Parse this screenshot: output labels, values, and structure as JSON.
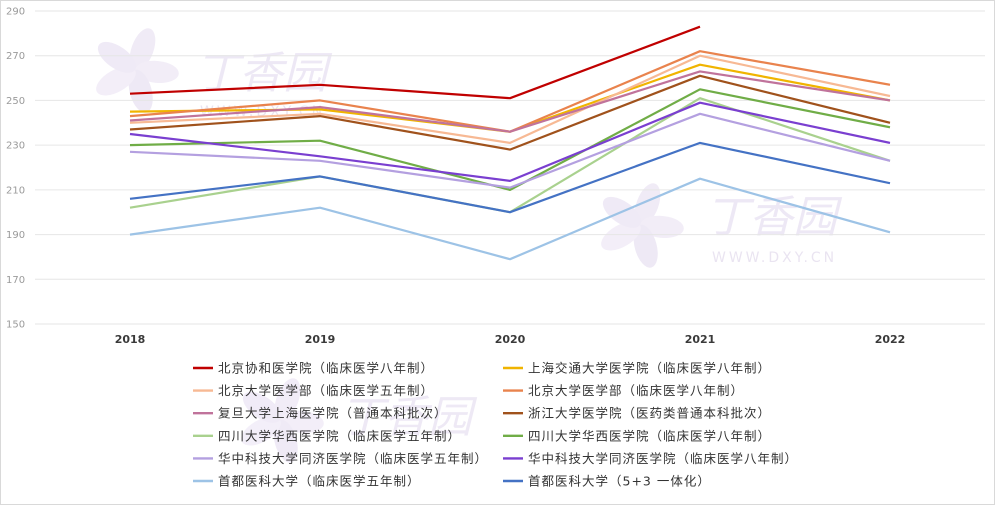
{
  "watermark": {
    "brand": "丁香园",
    "site": "WWW.DXY.CN"
  },
  "chart_data": {
    "type": "line",
    "title": "",
    "xlabel": "",
    "ylabel": "",
    "categories": [
      "2018",
      "2019",
      "2020",
      "2021",
      "2022"
    ],
    "ylim": [
      150,
      290
    ],
    "yticks": [
      150,
      170,
      190,
      210,
      230,
      250,
      270,
      290
    ],
    "grid": "horizontal",
    "legend_position": "bottom",
    "series": [
      {
        "name": "北京协和医学院（临床医学八年制）",
        "color": "#c00000",
        "values": [
          253,
          257,
          251,
          283,
          null
        ]
      },
      {
        "name": "上海交通大学医学院（临床医学八年制）",
        "color": "#f0b400",
        "values": [
          245,
          246,
          236,
          266,
          250
        ]
      },
      {
        "name": "北京大学医学部（临床医学五年制）",
        "color": "#f7b994",
        "values": [
          240,
          244,
          231,
          270,
          252
        ]
      },
      {
        "name": "北京大学医学部（临床医学八年制）",
        "color": "#e9834d",
        "values": [
          243,
          250,
          236,
          272,
          257
        ]
      },
      {
        "name": "复旦大学上海医学院（普通本科批次）",
        "color": "#c0739b",
        "values": [
          241,
          247,
          236,
          263,
          250
        ]
      },
      {
        "name": "浙江大学医学院（医药类普通本科批次）",
        "color": "#a0521c",
        "values": [
          237,
          243,
          228,
          261,
          240
        ]
      },
      {
        "name": "四川大学华西医学院（临床医学五年制）",
        "color": "#a9d18e",
        "values": [
          202,
          216,
          200,
          251,
          223
        ]
      },
      {
        "name": "四川大学华西医学院（临床医学八年制）",
        "color": "#70ad47",
        "values": [
          230,
          232,
          210,
          255,
          238
        ]
      },
      {
        "name": "华中科技大学同济医学院（临床医学五年制）",
        "color": "#b4a0e0",
        "values": [
          227,
          223,
          211,
          244,
          223
        ]
      },
      {
        "name": "华中科技大学同济医学院（临床医学八年制）",
        "color": "#7a3fd0",
        "values": [
          235,
          225,
          214,
          249,
          231
        ]
      },
      {
        "name": "首都医科大学（临床医学五年制）",
        "color": "#9dc3e6",
        "values": [
          190,
          202,
          179,
          215,
          191
        ]
      },
      {
        "name": "首都医科大学（5+3 一体化）",
        "color": "#4472c4",
        "values": [
          206,
          216,
          200,
          231,
          213
        ]
      }
    ]
  }
}
